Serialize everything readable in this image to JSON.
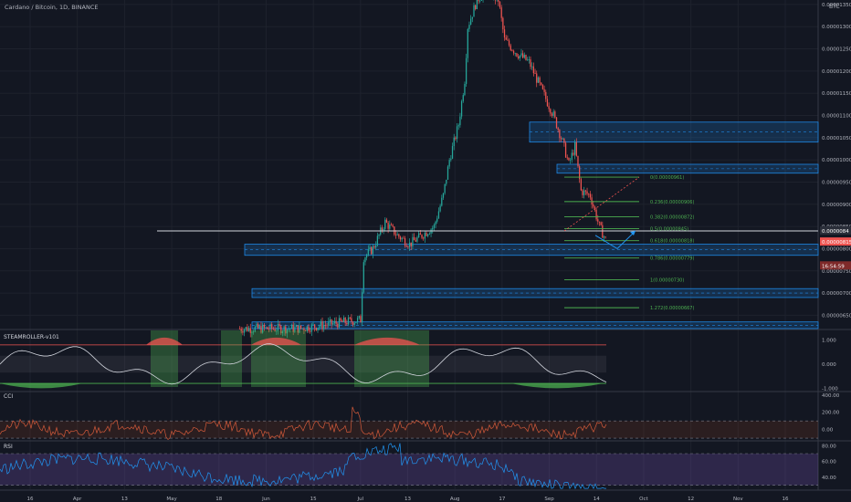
{
  "header": {
    "symbol_title": "Cardano / Bitcoin, 1D, BINANCE",
    "currency": "BTC"
  },
  "colors": {
    "background": "#131722",
    "bull": "#26a69a",
    "bear": "#ef5350",
    "zone": "#1e88e5",
    "fib": "#4caf50",
    "arrow": "#2196f3",
    "cci_line": "#d35a3a",
    "rsi_line": "#2196f3",
    "rsi_band": "#7e57c2",
    "steam_green": "#4caf50",
    "steam_red": "#ef5350"
  },
  "chart_data": [
    {
      "type": "candlestick",
      "pane": "price",
      "y_ticks": [
        "0.00001350",
        "0.00001300",
        "0.00001250",
        "0.00001200",
        "0.00001150",
        "0.00001100",
        "0.00001050",
        "0.00001000",
        "0.00000950",
        "0.00000900",
        "0.00000850",
        "0.00000800",
        "0.00000750",
        "0.00000700",
        "0.00000650"
      ],
      "ylim": [
        6.2e-06,
        1.36e-05
      ],
      "x_ticks": [
        "16",
        "Apr",
        "13",
        "May",
        "18",
        "Jun",
        "15",
        "Jul",
        "13",
        "Aug",
        "17",
        "Sep",
        "14",
        "Oct",
        "12",
        "Nov",
        "16"
      ],
      "price_labels": [
        {
          "text": "0.0000084",
          "value": 8.4e-06,
          "color": "#2a2e39"
        },
        {
          "text": "0.00000815",
          "value": 8.15e-06,
          "color": "#ef5350"
        },
        {
          "text": "16:54:59",
          "value": 7.9e-06,
          "color": "#7f2a2a"
        }
      ],
      "candle_anchors": [
        [
          0,
          6.2e-06
        ],
        [
          40,
          6.2e-06
        ],
        [
          60,
          6.3e-06
        ],
        [
          80,
          6.4e-06
        ],
        [
          82,
          7.8e-06
        ],
        [
          88,
          8e-06
        ],
        [
          96,
          8.6e-06
        ],
        [
          104,
          8.3e-06
        ],
        [
          112,
          8.1e-06
        ],
        [
          120,
          8.3e-06
        ],
        [
          128,
          8.5e-06
        ],
        [
          134,
          9.2e-06
        ],
        [
          138,
          1e-05
        ],
        [
          144,
          1.08e-05
        ],
        [
          148,
          1.18e-05
        ],
        [
          150,
          1.3e-05
        ],
        [
          156,
          1.36e-05
        ],
        [
          162,
          1.38e-05
        ],
        [
          170,
          1.36e-05
        ],
        [
          174,
          1.27e-05
        ],
        [
          182,
          1.24e-05
        ],
        [
          190,
          1.22e-05
        ],
        [
          198,
          1.16e-05
        ],
        [
          206,
          1.1e-05
        ],
        [
          212,
          1.04e-05
        ],
        [
          216,
          9.9e-06
        ],
        [
          220,
          1.03e-05
        ],
        [
          224,
          9.3e-06
        ],
        [
          230,
          9.2e-06
        ],
        [
          236,
          8.5e-06
        ],
        [
          240,
          8.2e-06
        ]
      ],
      "zones": [
        [
          1.085e-05,
          1.04e-05
        ],
        [
          9.9e-06,
          9.7e-06
        ],
        [
          8.1e-06,
          7.85e-06
        ],
        [
          7.1e-06,
          6.9e-06
        ],
        [
          6.35e-06,
          6.2e-06
        ]
      ],
      "horizontal_line": 8.4e-06,
      "fib_levels": [
        {
          "label": "0(0.00000961)",
          "value": 9.61e-06
        },
        {
          "label": "0.236(0.00000906)",
          "value": 9.06e-06
        },
        {
          "label": "0.382(0.00000872)",
          "value": 8.72e-06
        },
        {
          "label": "0.5(0.00000845)",
          "value": 8.45e-06
        },
        {
          "label": "0.618(0.00000818)",
          "value": 8.18e-06
        },
        {
          "label": "0.786(0.00000779)",
          "value": 7.79e-06
        },
        {
          "label": "1(0.00000730)",
          "value": 7.3e-06
        },
        {
          "label": "1.272(0.00000667)",
          "value": 6.67e-06
        }
      ]
    },
    {
      "type": "line",
      "pane": "oscillator",
      "title": "STEAMROLLER-v101",
      "y_ticks": [
        "1.000",
        "0.000",
        "-1.000"
      ],
      "ylim": [
        -1.1,
        1.4
      ]
    },
    {
      "type": "line",
      "pane": "cci",
      "title": "CCI",
      "y_ticks": [
        "400.00",
        "200.00",
        "0.00"
      ],
      "ylim": [
        -120,
        430
      ],
      "bands": [
        100,
        -100
      ]
    },
    {
      "type": "line",
      "pane": "rsi",
      "title": "RSI",
      "y_ticks": [
        "80.00",
        "60.00",
        "40.00"
      ],
      "ylim": [
        25,
        85
      ],
      "bands": [
        70,
        30
      ]
    }
  ]
}
